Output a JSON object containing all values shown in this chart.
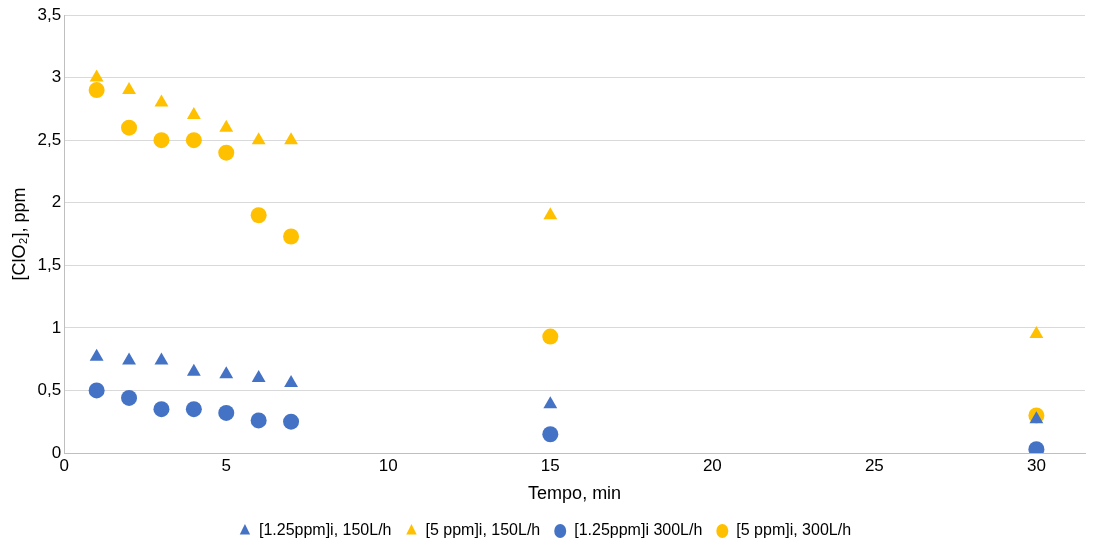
{
  "chart_data": {
    "type": "scatter",
    "xlabel": "Tempo, min",
    "ylabel": "[ClO₂], ppm",
    "x": [
      1,
      2,
      3,
      4,
      5,
      6,
      7,
      15,
      30
    ],
    "xlim": [
      0,
      31.5
    ],
    "xticks": [
      0,
      5,
      10,
      15,
      20,
      25,
      30
    ],
    "ylim": [
      0,
      3.5
    ],
    "yticks": [
      0,
      {
        "value": 0.5,
        "label": "0,5"
      },
      1,
      {
        "value": 1.5,
        "label": "1,5"
      },
      2,
      {
        "value": 2.5,
        "label": "2,5"
      },
      3,
      {
        "value": 3.5,
        "label": "3,5"
      }
    ],
    "grid": "y",
    "legend": "bottom",
    "series": [
      {
        "name": "[1.25ppm]i, 150L/h",
        "color": "#4472c4",
        "marker": "triangle",
        "values": [
          0.77,
          0.74,
          0.74,
          0.65,
          0.63,
          0.6,
          0.56,
          0.39,
          0.27
        ]
      },
      {
        "name": "[5 ppm]i, 150L/h",
        "color": "#ffc000",
        "marker": "triangle",
        "values": [
          3.0,
          2.9,
          2.8,
          2.7,
          2.6,
          2.5,
          2.5,
          1.9,
          0.95
        ]
      },
      {
        "name": "[1.25ppm]i 300L/h",
        "color": "#4472c4",
        "marker": "circle",
        "values": [
          0.5,
          0.44,
          0.35,
          0.35,
          0.32,
          0.26,
          0.25,
          0.15,
          0.03
        ]
      },
      {
        "name": "[5 ppm]i, 300L/h",
        "color": "#ffc000",
        "marker": "circle",
        "values": [
          2.9,
          2.6,
          2.5,
          2.5,
          2.4,
          1.9,
          1.73,
          0.93,
          0.3
        ]
      }
    ]
  }
}
